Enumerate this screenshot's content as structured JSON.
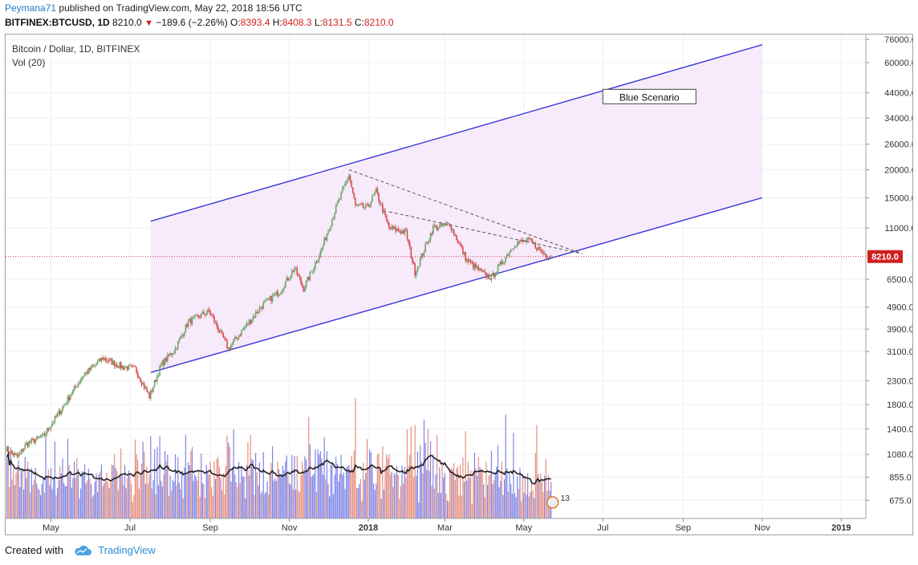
{
  "header": {
    "author": "Peymana71",
    "published_text": "published on TradingView.com, May 22, 2018 18:56 UTC",
    "symbol": "BITFINEX:BTCUSD, 1D",
    "last_price": "8210.0",
    "change": "−189.6 (−2.26%)",
    "open_label": "O:",
    "open_value": "8393.4",
    "high_label": "H:",
    "high_value": "8408.3",
    "low_label": "L:",
    "low_value": "8131.5",
    "close_label": "C:",
    "close_value": "8210.0"
  },
  "legend": {
    "title": "Bitcoin / Dollar, 1D, BITFINEX",
    "volume": "Vol (20)"
  },
  "footer": {
    "created_with": "Created with",
    "brand": "TradingView"
  },
  "colors": {
    "up": "#6aa56a",
    "down": "#d94b4b",
    "vol_up": "#6a6ee0",
    "vol_down": "#e07a6a",
    "channel": "#2b2bd6",
    "channel_fill": "#f6eafb",
    "price_line": "#d02020"
  },
  "chart_data": {
    "type": "candlestick",
    "scale": "log",
    "x_tick_labels": [
      "May",
      "Jul",
      "Sep",
      "Nov",
      "2018",
      "Mar",
      "May",
      "Jul",
      "Sep",
      "Nov",
      "2019"
    ],
    "y_tick_labels": [
      "76000.0",
      "60000.0",
      "44000.0",
      "34000.0",
      "26000.0",
      "20000.0",
      "15000.0",
      "11000.0",
      "6500.0",
      "4900.0",
      "3900.0",
      "3100.0",
      "2300.0",
      "1800.0",
      "1400.0",
      "1080.0",
      "855.0",
      "675.0"
    ],
    "y_ticks": [
      76000,
      60000,
      44000,
      34000,
      26000,
      20000,
      15000,
      11000,
      6500,
      4900,
      3900,
      3100,
      2300,
      1800,
      1400,
      1080,
      855,
      675
    ],
    "ylim": [
      560,
      80000
    ],
    "xlim": [
      "2017-03-27",
      "2019-01-20"
    ],
    "x_tick_dates": [
      "2017-05-01",
      "2017-07-01",
      "2017-09-01",
      "2017-11-01",
      "2018-01-01",
      "2018-03-01",
      "2018-05-01",
      "2018-07-01",
      "2018-09-01",
      "2018-11-01",
      "2019-01-01"
    ],
    "current_price": 8210.0,
    "current_price_label": "8210.0",
    "price_key_points": [
      [
        "2017-03-27",
        1150
      ],
      [
        "2017-04-05",
        1050
      ],
      [
        "2017-04-12",
        1200
      ],
      [
        "2017-04-25",
        1300
      ],
      [
        "2017-05-10",
        1750
      ],
      [
        "2017-05-25",
        2400
      ],
      [
        "2017-06-10",
        2900
      ],
      [
        "2017-06-25",
        2650
      ],
      [
        "2017-07-05",
        2600
      ],
      [
        "2017-07-16",
        1950
      ],
      [
        "2017-07-25",
        2700
      ],
      [
        "2017-08-05",
        3200
      ],
      [
        "2017-08-15",
        4200
      ],
      [
        "2017-08-31",
        4700
      ],
      [
        "2017-09-15",
        3200
      ],
      [
        "2017-09-25",
        3800
      ],
      [
        "2017-10-10",
        4900
      ],
      [
        "2017-10-25",
        5800
      ],
      [
        "2017-11-05",
        7300
      ],
      [
        "2017-11-12",
        5900
      ],
      [
        "2017-11-25",
        8600
      ],
      [
        "2017-12-07",
        13500
      ],
      [
        "2017-12-17",
        19000
      ],
      [
        "2017-12-22",
        13800
      ],
      [
        "2017-12-31",
        13500
      ],
      [
        "2018-01-07",
        16000
      ],
      [
        "2018-01-17",
        11000
      ],
      [
        "2018-01-30",
        10500
      ],
      [
        "2018-02-06",
        7000
      ],
      [
        "2018-02-20",
        11000
      ],
      [
        "2018-03-05",
        11400
      ],
      [
        "2018-03-18",
        7900
      ],
      [
        "2018-04-01",
        6800
      ],
      [
        "2018-04-06",
        6600
      ],
      [
        "2018-04-24",
        9400
      ],
      [
        "2018-05-05",
        9700
      ],
      [
        "2018-05-15",
        8600
      ],
      [
        "2018-05-22",
        8210
      ]
    ],
    "volume_ma": {
      "name": "Vol (20)",
      "badge": "13"
    },
    "channel": {
      "upper": [
        [
          "2017-07-17",
          11800
        ],
        [
          "2018-11-01",
          72000
        ]
      ],
      "lower": [
        [
          "2017-07-17",
          2500
        ],
        [
          "2018-11-01",
          15000
        ]
      ]
    },
    "trendlines": [
      [
        [
          "2017-12-17",
          20000
        ],
        [
          "2018-06-15",
          8450
        ]
      ],
      [
        [
          "2018-01-17",
          13000
        ],
        [
          "2018-06-15",
          8450
        ]
      ]
    ],
    "annotations": [
      {
        "text": "Blue Scenario",
        "at": [
          "2018-07-01",
          42000
        ]
      }
    ]
  }
}
